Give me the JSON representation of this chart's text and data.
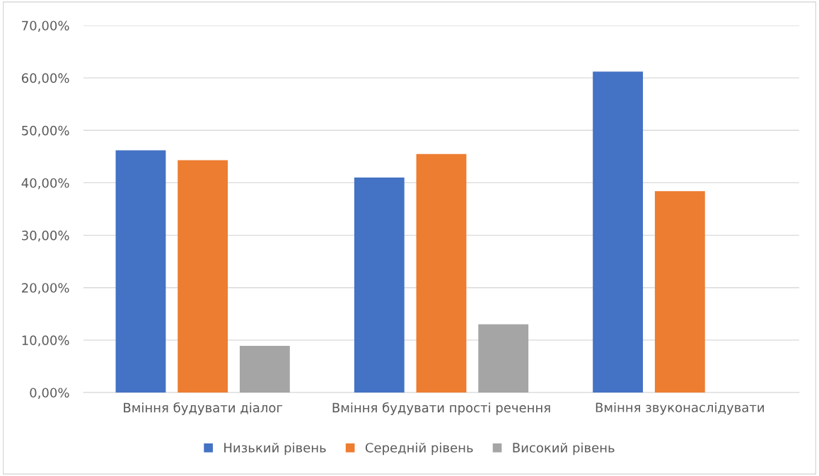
{
  "chart_data": {
    "type": "bar",
    "categories": [
      "Вміння будувати діалог",
      "Вміння будувати прості речення",
      "Вміння звуконаслідувати"
    ],
    "series": [
      {
        "name": "Низький рівень",
        "color": "#4472c4",
        "values": [
          46.2,
          41.0,
          61.2
        ]
      },
      {
        "name": "Середній рівень",
        "color": "#ed7d31",
        "values": [
          44.3,
          45.5,
          38.4
        ]
      },
      {
        "name": "Високий рівень",
        "color": "#a5a5a5",
        "values": [
          8.9,
          13.0,
          null
        ]
      }
    ],
    "ylim": [
      0,
      70
    ],
    "yticks": [
      {
        "value": 0,
        "label": "0,00%"
      },
      {
        "value": 10,
        "label": "10,00%"
      },
      {
        "value": 20,
        "label": "20,00%"
      },
      {
        "value": 30,
        "label": "30,00%"
      },
      {
        "value": 40,
        "label": "40,00%"
      },
      {
        "value": 50,
        "label": "50,00%"
      },
      {
        "value": 60,
        "label": "60,00%"
      },
      {
        "value": 70,
        "label": "70,00%"
      }
    ],
    "grid": "y",
    "legend": "bottom"
  }
}
